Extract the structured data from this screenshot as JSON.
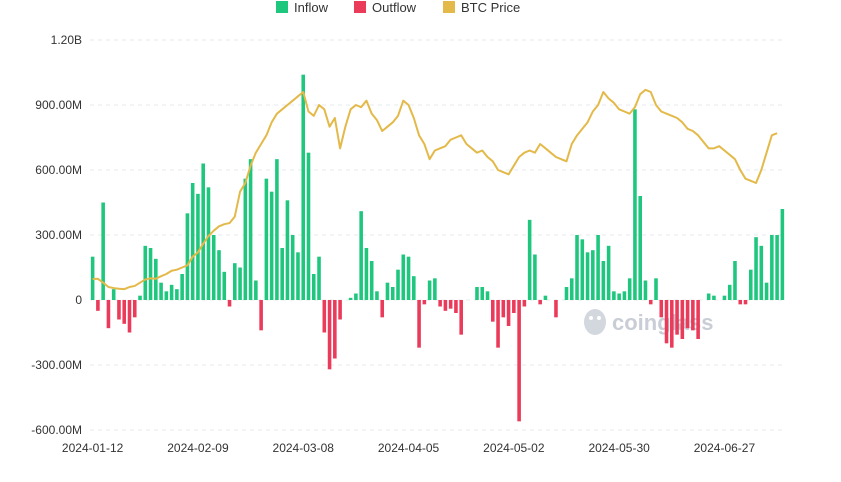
{
  "chart_data": {
    "type": "bar",
    "legend": [
      {
        "name": "Inflow",
        "color": "#1fc77e",
        "icon": "square-swatch"
      },
      {
        "name": "Outflow",
        "color": "#ea3b5a",
        "icon": "square-swatch"
      },
      {
        "name": "BTC Price",
        "color": "#e3b949",
        "icon": "square-swatch"
      }
    ],
    "legend_position": "top-center",
    "watermark": "coinglass",
    "x_tick_labels": [
      "2024-01-12",
      "2024-02-09",
      "2024-03-08",
      "2024-04-05",
      "2024-05-02",
      "2024-05-30",
      "2024-06-27"
    ],
    "x_tick_indices": [
      0,
      20,
      40,
      60,
      80,
      100,
      120
    ],
    "y_tick_labels": [
      "1.20B",
      "900.00M",
      "600.00M",
      "300.00M",
      "0",
      "-300.00M",
      "-600.00M"
    ],
    "y_tick_values": [
      1200,
      900,
      600,
      300,
      0,
      -300,
      -600
    ],
    "ylim": [
      -600,
      1200
    ],
    "y_units": "millions USD",
    "grid": "horizontal dashed",
    "series": [
      {
        "name": "Inflow/Outflow",
        "note_values_in_millions": true,
        "values": [
          200,
          -50,
          450,
          -130,
          50,
          -90,
          -110,
          -150,
          -80,
          20,
          250,
          240,
          190,
          80,
          40,
          70,
          50,
          120,
          400,
          540,
          490,
          630,
          520,
          300,
          230,
          130,
          -30,
          170,
          150,
          560,
          650,
          90,
          -140,
          560,
          500,
          650,
          240,
          460,
          300,
          220,
          1040,
          680,
          120,
          200,
          -150,
          -320,
          -270,
          -90,
          0,
          10,
          30,
          410,
          240,
          180,
          40,
          -80,
          80,
          60,
          140,
          210,
          200,
          110,
          -220,
          -20,
          90,
          100,
          -30,
          -50,
          -40,
          -60,
          -160,
          0,
          0,
          60,
          60,
          40,
          -100,
          -220,
          -80,
          -120,
          -60,
          -560,
          -30,
          370,
          210,
          -20,
          20,
          0,
          -80,
          0,
          60,
          100,
          300,
          280,
          220,
          230,
          300,
          180,
          250,
          40,
          30,
          40,
          100,
          880,
          480,
          90,
          -20,
          100,
          -80,
          -200,
          -220,
          -160,
          -180,
          -130,
          -140,
          -180,
          0,
          30,
          20,
          0,
          20,
          70,
          180,
          -20,
          -20,
          140,
          290,
          250,
          80,
          300,
          300,
          420
        ]
      },
      {
        "name": "BTC Price",
        "values": [
          97,
          98,
          80,
          60,
          55,
          52,
          50,
          60,
          65,
          80,
          95,
          100,
          98,
          110,
          120,
          135,
          140,
          150,
          160,
          200,
          220,
          260,
          295,
          320,
          340,
          350,
          355,
          385,
          500,
          540,
          620,
          680,
          720,
          760,
          820,
          860,
          880,
          900,
          920,
          940,
          960,
          870,
          850,
          900,
          880,
          800,
          840,
          700,
          800,
          880,
          900,
          890,
          920,
          860,
          830,
          780,
          800,
          820,
          850,
          920,
          900,
          840,
          760,
          720,
          650,
          690,
          700,
          710,
          740,
          750,
          760,
          720,
          700,
          680,
          690,
          660,
          640,
          600,
          590,
          580,
          620,
          660,
          680,
          690,
          680,
          720,
          700,
          680,
          660,
          650,
          640,
          720,
          760,
          790,
          820,
          870,
          900,
          960,
          930,
          910,
          880,
          870,
          860,
          890,
          950,
          970,
          960,
          900,
          870,
          860,
          850,
          840,
          820,
          790,
          780,
          760,
          730,
          700,
          700,
          710,
          690,
          670,
          650,
          600,
          560,
          550,
          540,
          600,
          680,
          760,
          770
        ]
      }
    ]
  }
}
